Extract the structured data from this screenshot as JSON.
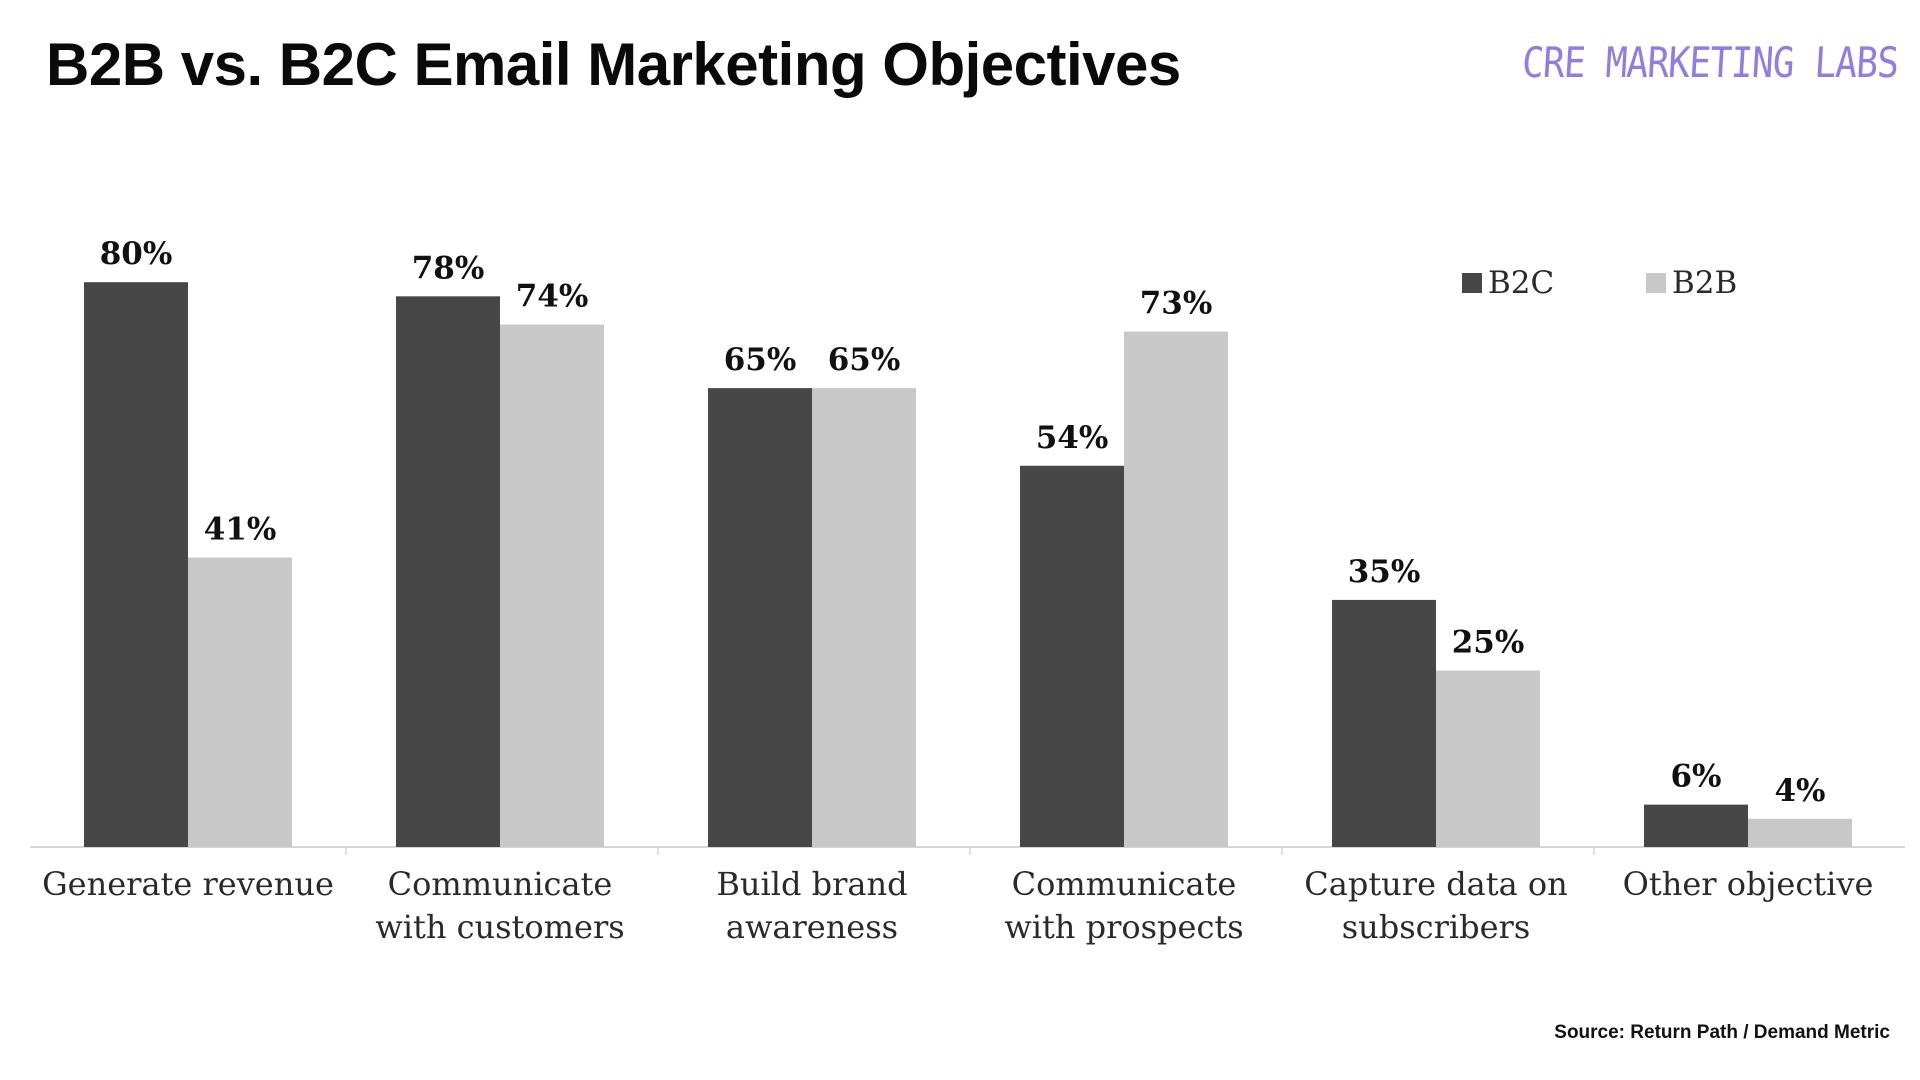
{
  "header": {
    "title": "B2B vs. B2C Email Marketing Objectives",
    "logo_text": "CRE MARKETING LABS"
  },
  "footer": {
    "source": "Source: Return Path / Demand Metric"
  },
  "chart_data": {
    "type": "bar",
    "title": "B2B vs. B2C Email Marketing Objectives",
    "xlabel": "",
    "ylabel": "",
    "ylim": [
      0,
      100
    ],
    "grid": false,
    "legend_position": "top-right",
    "categories": [
      [
        "Generate revenue"
      ],
      [
        "Communicate",
        "with customers"
      ],
      [
        "Build brand",
        "awareness"
      ],
      [
        "Communicate",
        "with prospects"
      ],
      [
        "Capture data on",
        "subscribers"
      ],
      [
        "Other objective"
      ]
    ],
    "series": [
      {
        "name": "B2C",
        "color": "#474747",
        "values": [
          80,
          78,
          65,
          54,
          35,
          6
        ],
        "labels": [
          "80%",
          "78%",
          "65%",
          "54%",
          "35%",
          "6%"
        ]
      },
      {
        "name": "B2B",
        "color": "#c8c8c8",
        "values": [
          41,
          74,
          65,
          73,
          25,
          4
        ],
        "labels": [
          "41%",
          "74%",
          "65%",
          "73%",
          "25%",
          "4%"
        ]
      }
    ]
  }
}
